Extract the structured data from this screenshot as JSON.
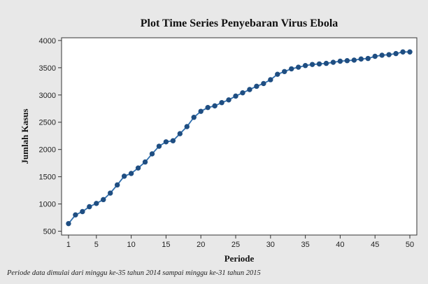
{
  "chart_data": {
    "type": "line",
    "title": "Plot Time Series Penyebaran Virus Ebola",
    "xlabel": "Periode",
    "ylabel": "Jumlah Kasus",
    "x_ticks": [
      1,
      5,
      10,
      15,
      20,
      25,
      30,
      35,
      40,
      45,
      50
    ],
    "y_ticks": [
      500,
      1000,
      1500,
      2000,
      2500,
      3000,
      3500,
      4000
    ],
    "xlim": [
      0,
      51
    ],
    "ylim": [
      430,
      4050
    ],
    "grid": false,
    "legend": "none",
    "series": [
      {
        "marker": "circle",
        "x": [
          1,
          2,
          3,
          4,
          5,
          6,
          7,
          8,
          9,
          10,
          11,
          12,
          13,
          14,
          15,
          16,
          17,
          18,
          19,
          20,
          21,
          22,
          23,
          24,
          25,
          26,
          27,
          28,
          29,
          30,
          31,
          32,
          33,
          34,
          35,
          36,
          37,
          38,
          39,
          40,
          41,
          42,
          43,
          44,
          45,
          46,
          47,
          48,
          49,
          50
        ],
        "values": [
          640,
          800,
          860,
          950,
          1010,
          1080,
          1200,
          1350,
          1510,
          1560,
          1660,
          1770,
          1920,
          2060,
          2140,
          2160,
          2290,
          2420,
          2590,
          2700,
          2770,
          2800,
          2860,
          2910,
          2980,
          3040,
          3100,
          3160,
          3210,
          3280,
          3380,
          3430,
          3480,
          3510,
          3540,
          3560,
          3570,
          3580,
          3600,
          3620,
          3630,
          3640,
          3660,
          3670,
          3710,
          3730,
          3740,
          3760,
          3790,
          3790
        ]
      }
    ]
  },
  "caption": "Periode data dimulai dari minggu ke-35 tahun 2014 sampai minggu ke-31 tahun 2015",
  "colors": {
    "line": "#2e6ead",
    "marker": "#1f4e82",
    "outer_bg": "#e8e8e8",
    "plot_bg": "#ffffff",
    "axis": "#333333"
  }
}
